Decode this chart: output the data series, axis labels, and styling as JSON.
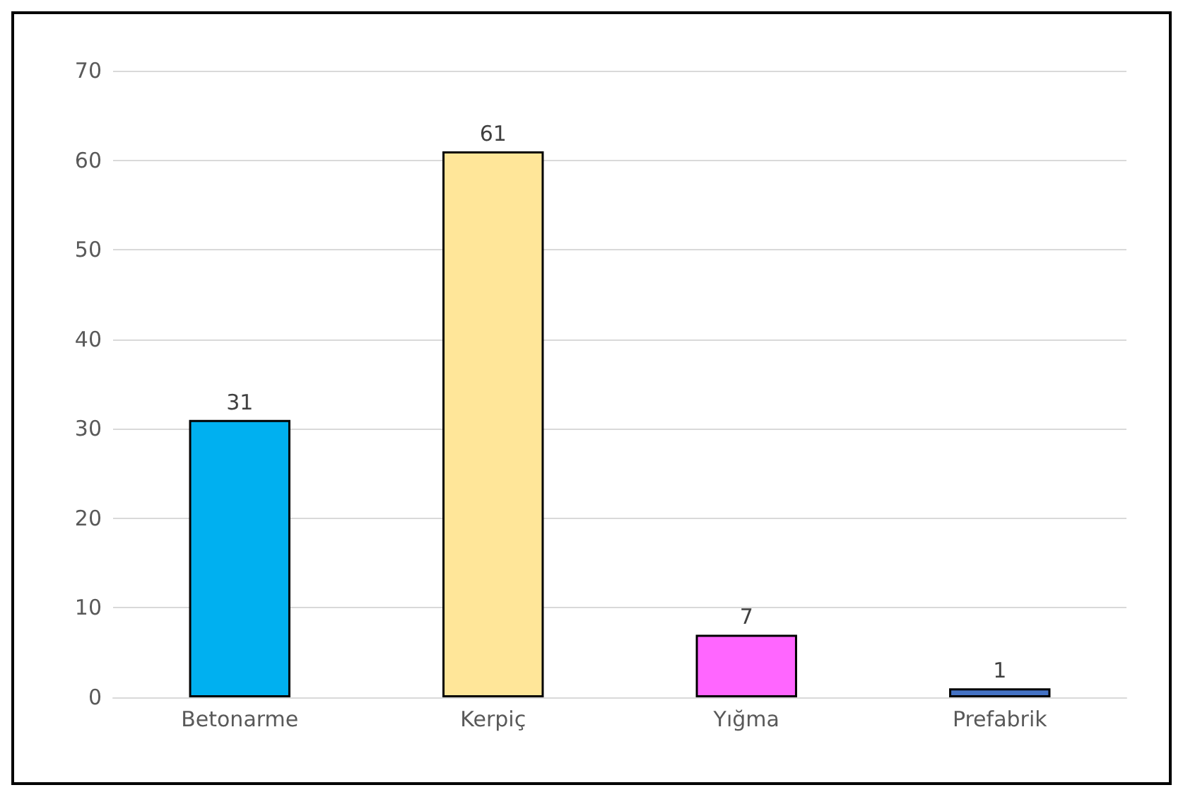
{
  "chart_data": {
    "type": "bar",
    "categories": [
      "Betonarme",
      "Kerpiç",
      "Yığma",
      "Prefabrik"
    ],
    "values": [
      31,
      61,
      7,
      1
    ],
    "colors": [
      "#00b0f0",
      "#ffe699",
      "#ff66ff",
      "#4472c4"
    ],
    "ylim": [
      0,
      70
    ],
    "yticks": [
      0,
      10,
      20,
      30,
      40,
      50,
      60,
      70
    ],
    "grid": "y",
    "data_labels": true
  }
}
